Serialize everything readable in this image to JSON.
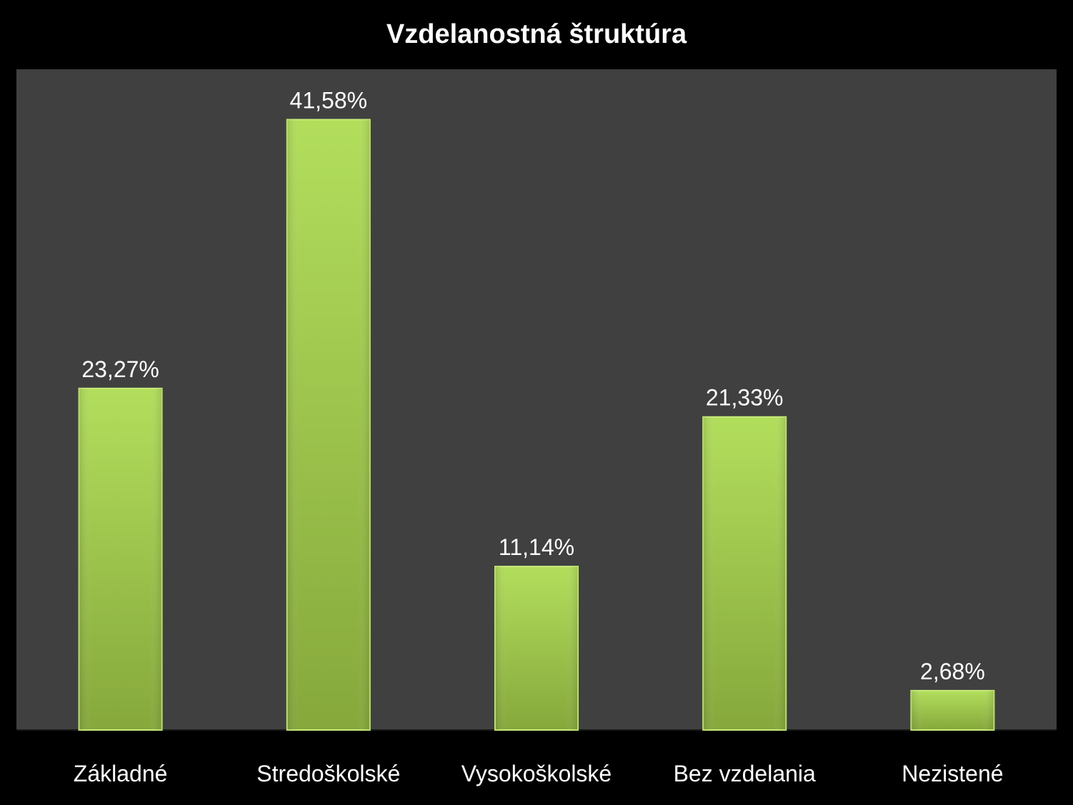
{
  "chart_data": {
    "type": "bar",
    "title": "Vzdelanostná štruktúra",
    "xlabel": "",
    "ylabel": "",
    "categories": [
      "Základné",
      "Stredoškolské",
      "Vysokoškolské",
      "Bez vzdelania",
      "Nezistené"
    ],
    "values": [
      23.27,
      41.58,
      11.14,
      21.33,
      2.68
    ],
    "data_labels": [
      "23,27%",
      "41,58%",
      "11,14%",
      "21,33%",
      "2,68%"
    ],
    "ylim": [
      0,
      44
    ],
    "grid": false,
    "legend": "none",
    "colors": {
      "page_background": "#000000",
      "plot_background": "#404040",
      "bar_light": "#b2de5c",
      "bar_dark": "#86a83c",
      "bar_edge": "#c9ec7a",
      "text": "#ffffff"
    }
  }
}
